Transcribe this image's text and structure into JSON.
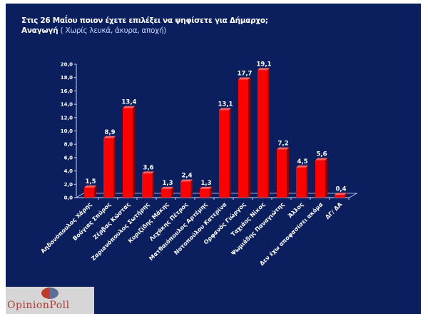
{
  "title": "Στις 26 Μαΐου ποιον έχετε επιλέξει να ψηφίσετε για Δήμαρχο;",
  "subtitle": "Αναγωγή",
  "subtitle_note": "( Χωρίς λευκά, άκυρα, αποχή)",
  "logo_text": "OpinionPoll",
  "colors": {
    "background": "#0b1f5e",
    "bar": "#ff0000",
    "text": "#ffffff"
  },
  "chart_data": {
    "type": "bar",
    "title": "",
    "xlabel": "",
    "ylabel": "",
    "ylim": [
      0,
      20
    ],
    "yticks": [
      "0,0",
      "2,0",
      "4,0",
      "6,0",
      "8,0",
      "10,0",
      "12,0",
      "14,0",
      "16,0",
      "18,0",
      "20,0"
    ],
    "grid": false,
    "categories": [
      "Αηδονόπουλος Χάρης",
      "Βούγιας Σπύρος",
      "Ζέρβας Κώστας",
      "Ζαριανόπουλος Σωτήρης",
      "Κυριζίδης Μάκης",
      "Λεχάκης Πέτρος",
      "Ματθαιόπουλος Αρτέμης",
      "Νοτοπούλου Κατερίνα",
      "Ορφανός Γιώργος",
      "Ταχιάος Νίκος",
      "Ψωμιάδης Παναγιώτης",
      "Άλλος",
      "Δεν έχω αποφασίσει ακόμα",
      "ΔΓ/ ΔΑ"
    ],
    "values": [
      1.5,
      8.9,
      13.4,
      3.6,
      1.3,
      2.4,
      1.3,
      13.1,
      17.7,
      19.1,
      7.2,
      4.5,
      5.6,
      0.4
    ],
    "data_labels": [
      "1,5",
      "8,9",
      "13,4",
      "3,6",
      "1,3",
      "2,4",
      "1,3",
      "13,1",
      "17,7",
      "19,1",
      "7,2",
      "4,5",
      "5,6",
      "0,4"
    ]
  }
}
